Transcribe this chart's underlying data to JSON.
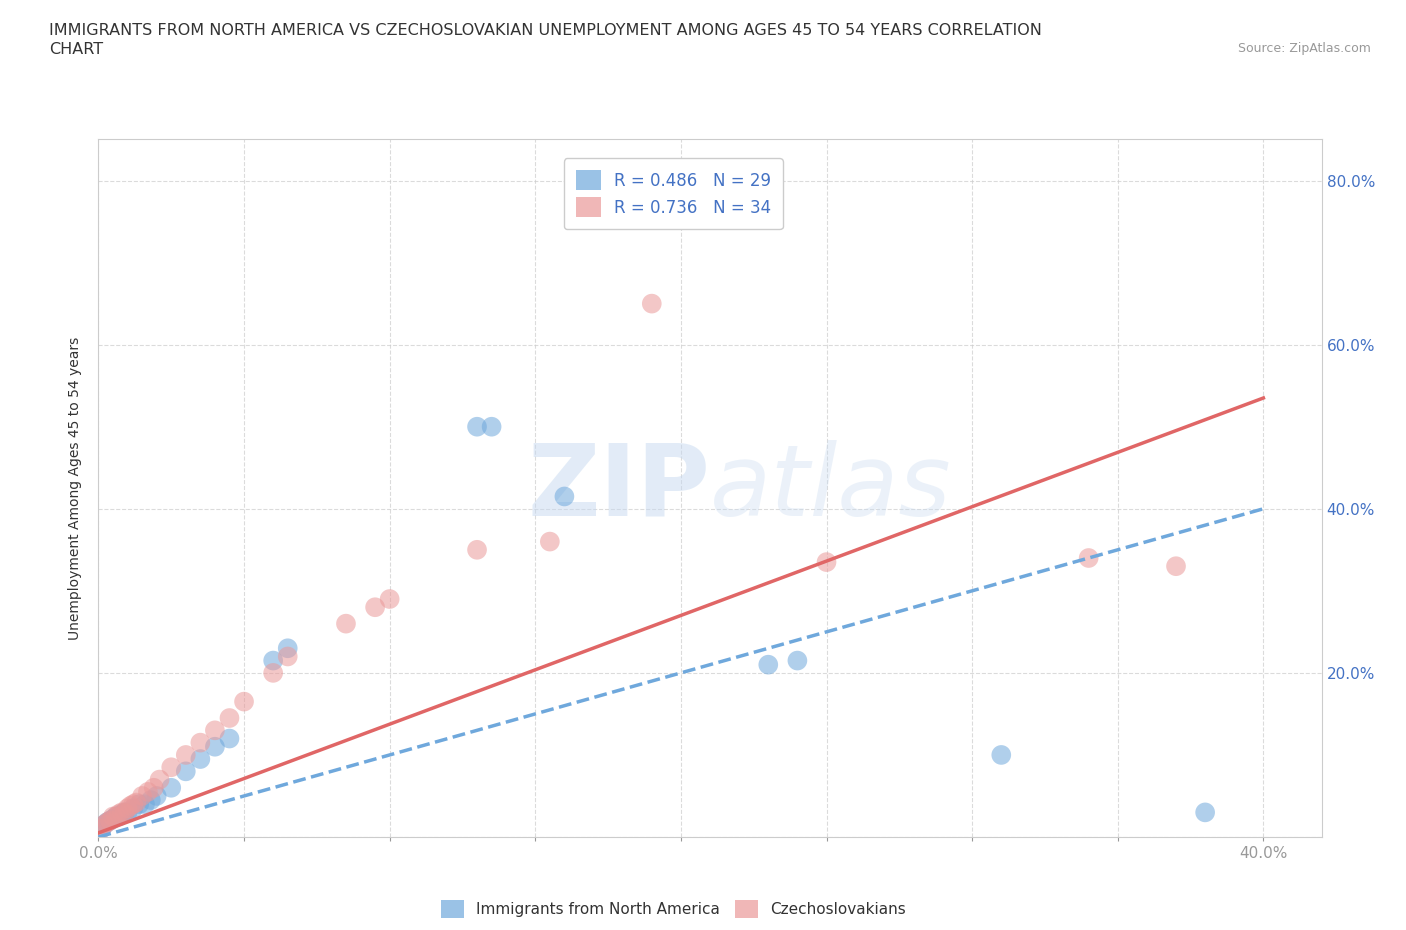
{
  "title_line1": "IMMIGRANTS FROM NORTH AMERICA VS CZECHOSLOVAKIAN UNEMPLOYMENT AMONG AGES 45 TO 54 YEARS CORRELATION",
  "title_line2": "CHART",
  "source_text": "Source: ZipAtlas.com",
  "ylabel": "Unemployment Among Ages 45 to 54 years",
  "xlim": [
    0.0,
    0.42
  ],
  "ylim": [
    0.0,
    0.85
  ],
  "xticks": [
    0.0,
    0.05,
    0.1,
    0.15,
    0.2,
    0.25,
    0.3,
    0.35,
    0.4
  ],
  "xticklabels": [
    "0.0%",
    "",
    "",
    "",
    "",
    "",
    "",
    "",
    "40.0%"
  ],
  "ytick_positions": [
    0.0,
    0.2,
    0.4,
    0.6,
    0.8
  ],
  "yticklabels": [
    "",
    "20.0%",
    "40.0%",
    "60.0%",
    "80.0%"
  ],
  "blue_color": "#6fa8dc",
  "blue_line_color": "#6fa8dc",
  "pink_color": "#ea9999",
  "pink_line_color": "#e06666",
  "legend_R1": "R = 0.486",
  "legend_N1": "N = 29",
  "legend_R2": "R = 0.736",
  "legend_N2": "N = 34",
  "blue_scatter_x": [
    0.001,
    0.002,
    0.003,
    0.004,
    0.005,
    0.006,
    0.007,
    0.008,
    0.009,
    0.01,
    0.012,
    0.014,
    0.016,
    0.018,
    0.02,
    0.025,
    0.03,
    0.035,
    0.04,
    0.045,
    0.06,
    0.065,
    0.13,
    0.135,
    0.16,
    0.23,
    0.24,
    0.31,
    0.38
  ],
  "blue_scatter_y": [
    0.01,
    0.015,
    0.018,
    0.02,
    0.022,
    0.025,
    0.025,
    0.028,
    0.03,
    0.03,
    0.035,
    0.04,
    0.04,
    0.045,
    0.05,
    0.06,
    0.08,
    0.095,
    0.11,
    0.12,
    0.215,
    0.23,
    0.5,
    0.5,
    0.415,
    0.21,
    0.215,
    0.1,
    0.03
  ],
  "pink_scatter_x": [
    0.001,
    0.002,
    0.003,
    0.004,
    0.005,
    0.006,
    0.007,
    0.008,
    0.009,
    0.01,
    0.011,
    0.012,
    0.013,
    0.015,
    0.017,
    0.019,
    0.021,
    0.025,
    0.03,
    0.035,
    0.04,
    0.045,
    0.05,
    0.06,
    0.065,
    0.085,
    0.095,
    0.1,
    0.13,
    0.155,
    0.19,
    0.25,
    0.34,
    0.37
  ],
  "pink_scatter_y": [
    0.01,
    0.015,
    0.018,
    0.02,
    0.025,
    0.025,
    0.028,
    0.03,
    0.03,
    0.035,
    0.038,
    0.04,
    0.042,
    0.05,
    0.055,
    0.06,
    0.07,
    0.085,
    0.1,
    0.115,
    0.13,
    0.145,
    0.165,
    0.2,
    0.22,
    0.26,
    0.28,
    0.29,
    0.35,
    0.36,
    0.65,
    0.335,
    0.34,
    0.33
  ],
  "blue_line_x": [
    0.0,
    0.4
  ],
  "blue_line_y": [
    0.0,
    0.4
  ],
  "pink_line_x": [
    0.0,
    0.4
  ],
  "pink_line_y": [
    0.005,
    0.535
  ],
  "watermark_text": "ZIPatlas",
  "background_color": "#ffffff",
  "grid_color": "#cccccc"
}
